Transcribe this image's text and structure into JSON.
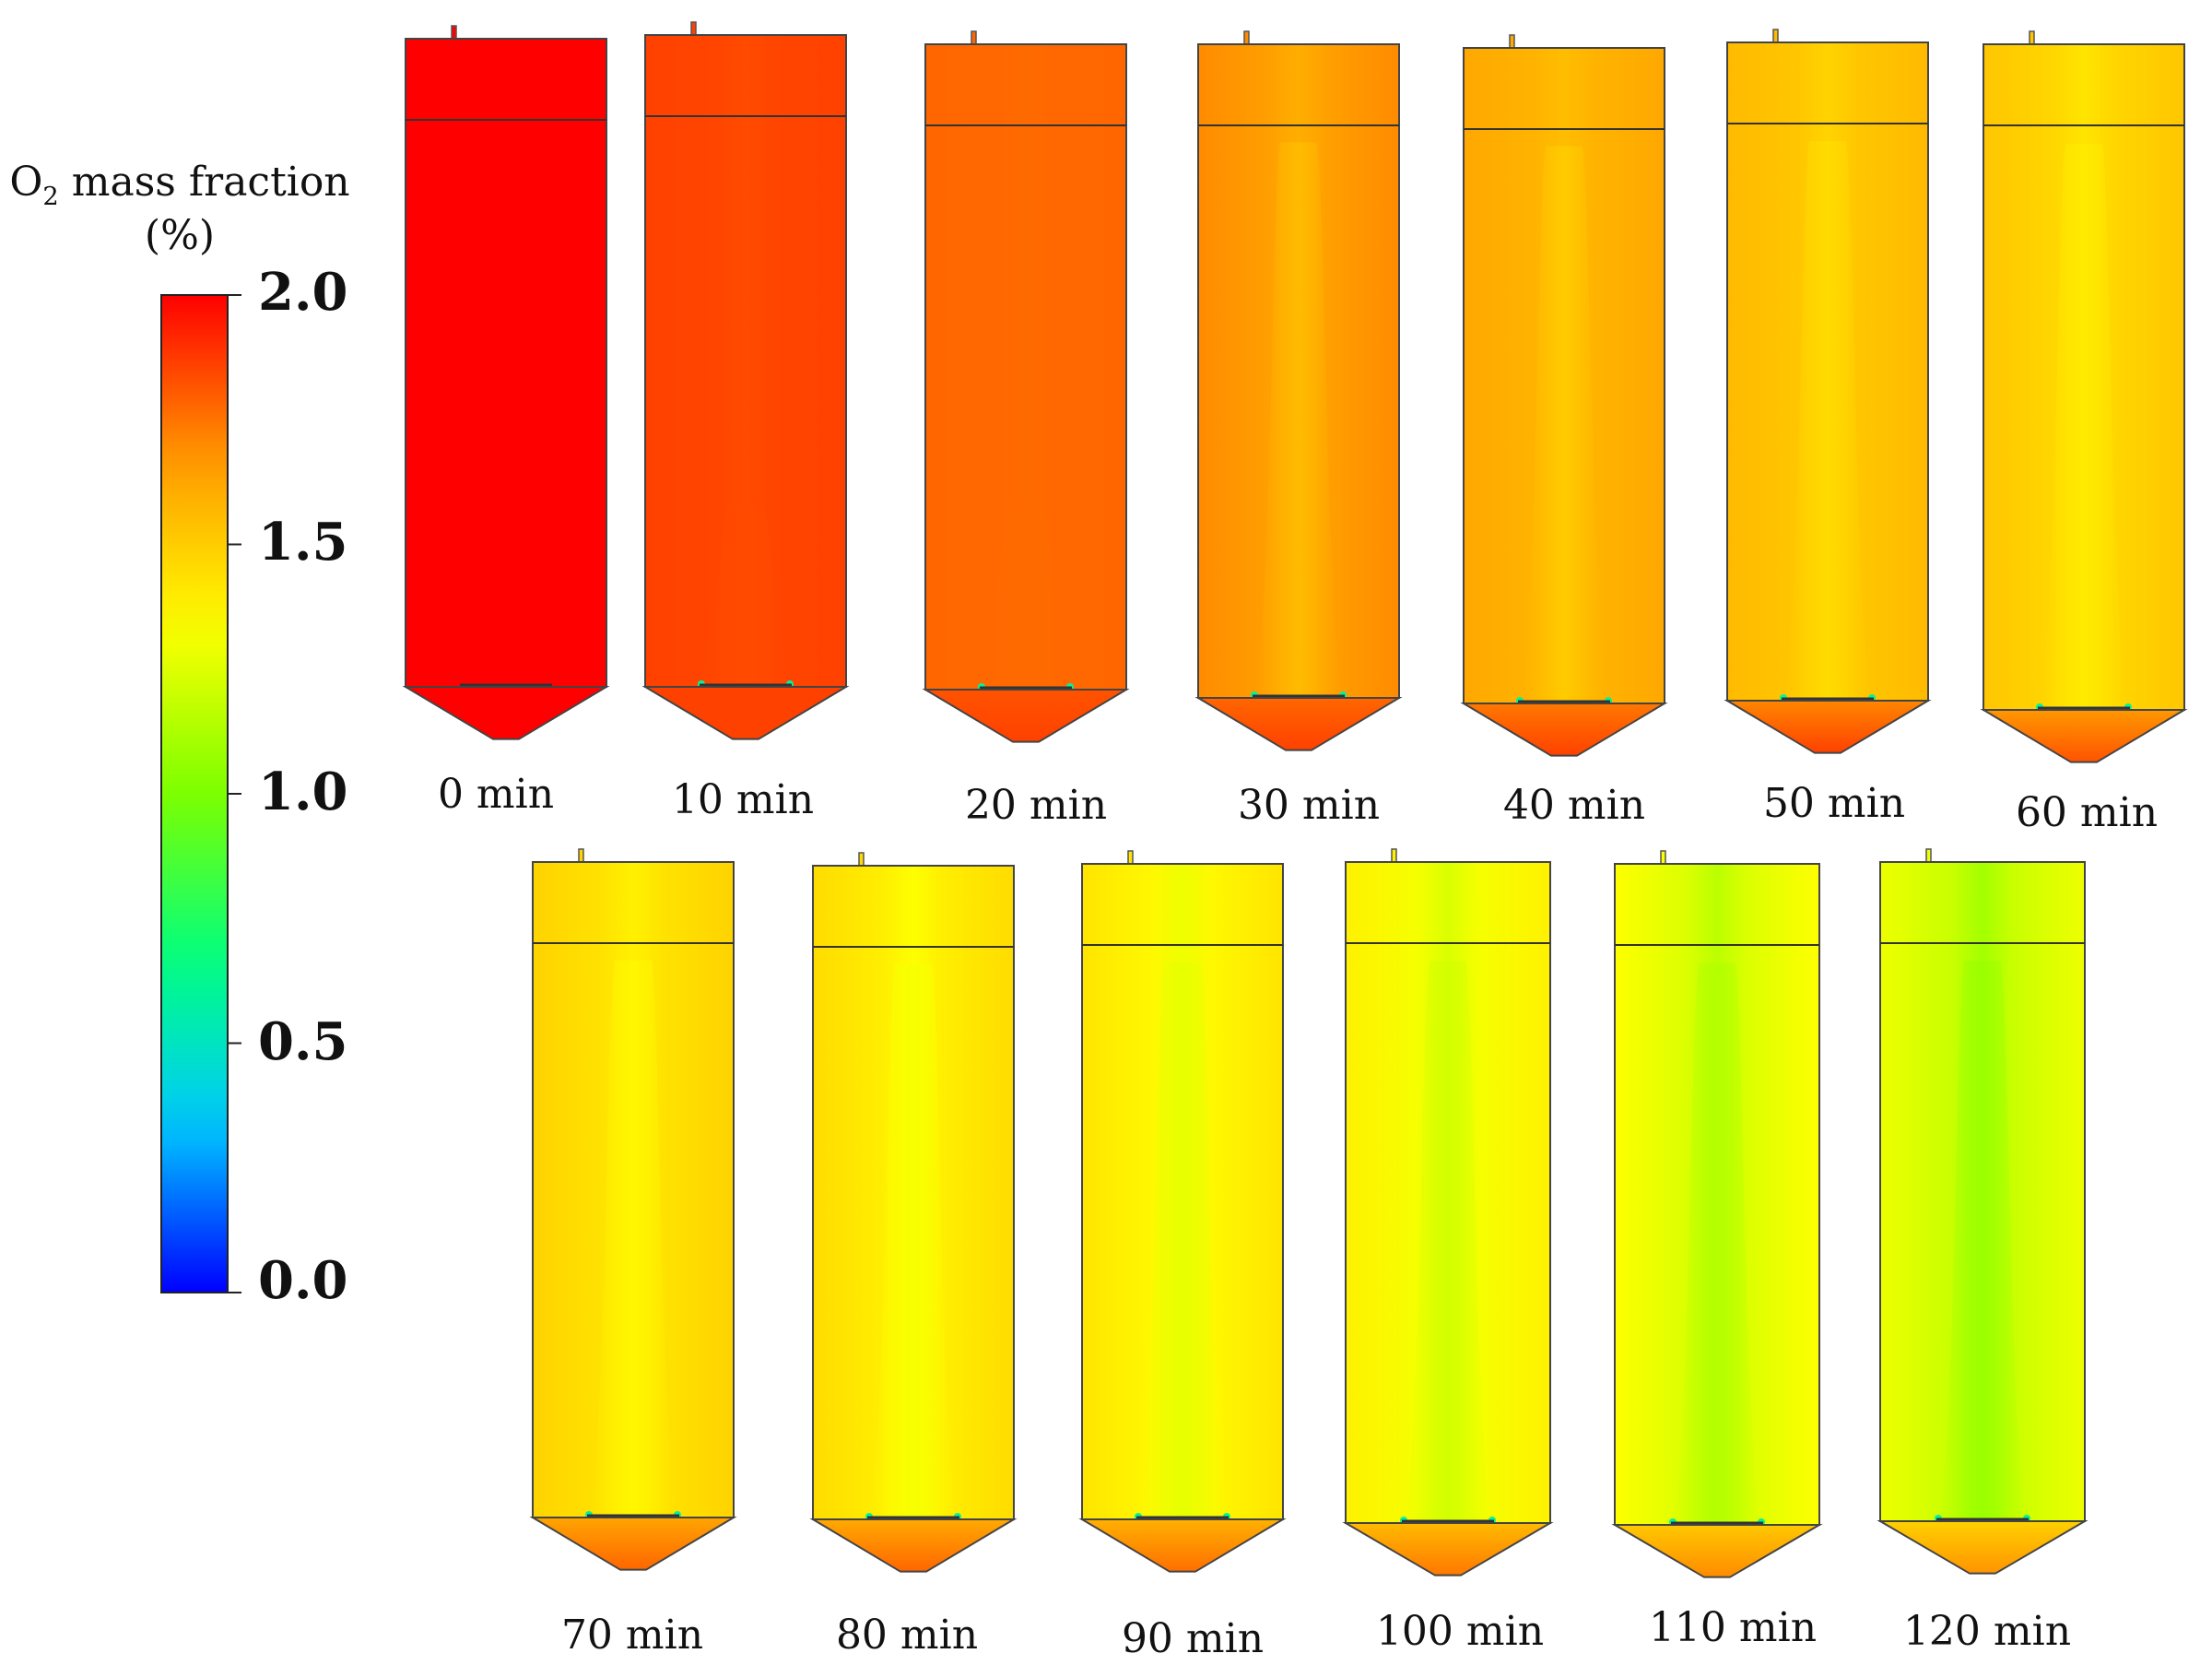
{
  "legend": {
    "title_prefix": "O",
    "title_sub": "2",
    "title_suffix": " mass fraction",
    "unit": "(%)",
    "ticks": [
      "2.0",
      "1.5",
      "1.0",
      "0.5",
      "0.0"
    ],
    "tick_values": [
      2.0,
      1.5,
      1.0,
      0.5,
      0.0
    ],
    "range": [
      0.0,
      2.0
    ],
    "colormap": [
      "#0000ff",
      "#00c8ff",
      "#00ff80",
      "#7cff00",
      "#ffff00",
      "#ff9a00",
      "#ff0000"
    ]
  },
  "snapshots": [
    {
      "label": "0 min",
      "time": 0,
      "wall": 2.0,
      "core": 2.0,
      "cone": 2.0,
      "plume": 2.0,
      "jets": false
    },
    {
      "label": "10 min",
      "time": 10,
      "wall": 1.86,
      "core": 1.84,
      "cone": 1.86,
      "plume": 1.84,
      "jets": true
    },
    {
      "label": "20 min",
      "time": 20,
      "wall": 1.78,
      "core": 1.77,
      "cone": 1.86,
      "plume": 1.77,
      "jets": true
    },
    {
      "label": "30 min",
      "time": 30,
      "wall": 1.7,
      "core": 1.6,
      "cone": 1.86,
      "plume": 1.55,
      "jets": true
    },
    {
      "label": "40 min",
      "time": 40,
      "wall": 1.62,
      "core": 1.55,
      "cone": 1.86,
      "plume": 1.5,
      "jets": true
    },
    {
      "label": "50 min",
      "time": 50,
      "wall": 1.56,
      "core": 1.48,
      "cone": 1.86,
      "plume": 1.45,
      "jets": true
    },
    {
      "label": "60 min",
      "time": 60,
      "wall": 1.52,
      "core": 1.42,
      "cone": 1.82,
      "plume": 1.4,
      "jets": true
    },
    {
      "label": "70 min",
      "time": 70,
      "wall": 1.48,
      "core": 1.38,
      "cone": 1.78,
      "plume": 1.36,
      "jets": true
    },
    {
      "label": "80 min",
      "time": 80,
      "wall": 1.45,
      "core": 1.33,
      "cone": 1.78,
      "plume": 1.31,
      "jets": true
    },
    {
      "label": "90 min",
      "time": 90,
      "wall": 1.42,
      "core": 1.29,
      "cone": 1.76,
      "plume": 1.27,
      "jets": true
    },
    {
      "label": "100 min",
      "time": 100,
      "wall": 1.38,
      "core": 1.24,
      "cone": 1.74,
      "plume": 1.22,
      "jets": true
    },
    {
      "label": "110 min",
      "time": 110,
      "wall": 1.33,
      "core": 1.16,
      "cone": 1.7,
      "plume": 1.14,
      "jets": true
    },
    {
      "label": "120 min",
      "time": 120,
      "wall": 1.29,
      "core": 1.1,
      "cone": 1.68,
      "plume": 1.08,
      "jets": true
    }
  ]
}
